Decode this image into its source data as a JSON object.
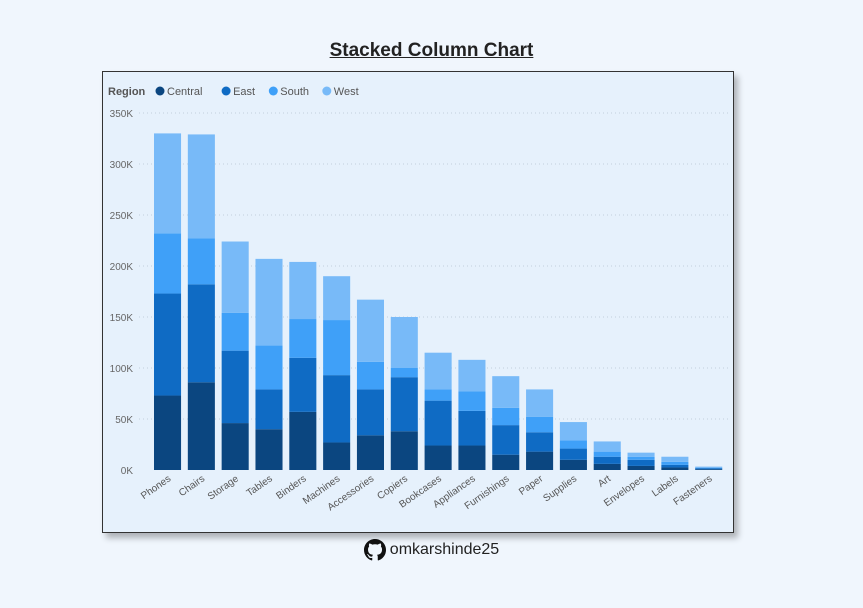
{
  "page": {
    "title": "Stacked Column Chart",
    "footer_handle": "omkarshinde25",
    "footer_icon": "github-icon"
  },
  "chart_data": {
    "type": "bar",
    "stacked": true,
    "title": "Stacked Column Chart",
    "legend": {
      "title": "Region",
      "placement": "top-left"
    },
    "categories": [
      "Phones",
      "Chairs",
      "Storage",
      "Tables",
      "Binders",
      "Machines",
      "Accessories",
      "Copiers",
      "Bookcases",
      "Appliances",
      "Furnishings",
      "Paper",
      "Supplies",
      "Art",
      "Envelopes",
      "Labels",
      "Fasteners"
    ],
    "series": [
      {
        "name": "Central",
        "color": "#0b4680",
        "values": [
          73000,
          86000,
          46000,
          40000,
          57000,
          27000,
          34000,
          38000,
          24000,
          24000,
          15000,
          18000,
          10000,
          6000,
          4000,
          2500,
          800
        ]
      },
      {
        "name": "East",
        "color": "#0f6bc4",
        "values": [
          100000,
          96000,
          71000,
          39000,
          53000,
          66000,
          45000,
          53000,
          44000,
          34000,
          29000,
          19000,
          11000,
          7000,
          6000,
          2500,
          1000
        ]
      },
      {
        "name": "South",
        "color": "#3fa0f8",
        "values": [
          59000,
          45000,
          37000,
          43000,
          38000,
          54000,
          27000,
          9000,
          11000,
          19000,
          17000,
          15000,
          8000,
          5000,
          3000,
          3000,
          500
        ]
      },
      {
        "name": "West",
        "color": "#78baf8",
        "values": [
          98000,
          102000,
          70000,
          85000,
          56000,
          43000,
          61000,
          50000,
          36000,
          31000,
          31000,
          27000,
          18000,
          10000,
          4000,
          5000,
          1000
        ]
      }
    ],
    "ylim": [
      0,
      350000
    ],
    "yticks": [
      0,
      50000,
      100000,
      150000,
      200000,
      250000,
      300000,
      350000
    ],
    "ytick_labels": [
      "0K",
      "50K",
      "100K",
      "150K",
      "200K",
      "250K",
      "300K",
      "350K"
    ],
    "grid": "horizontal dotted",
    "xlabel": "",
    "ylabel": ""
  }
}
